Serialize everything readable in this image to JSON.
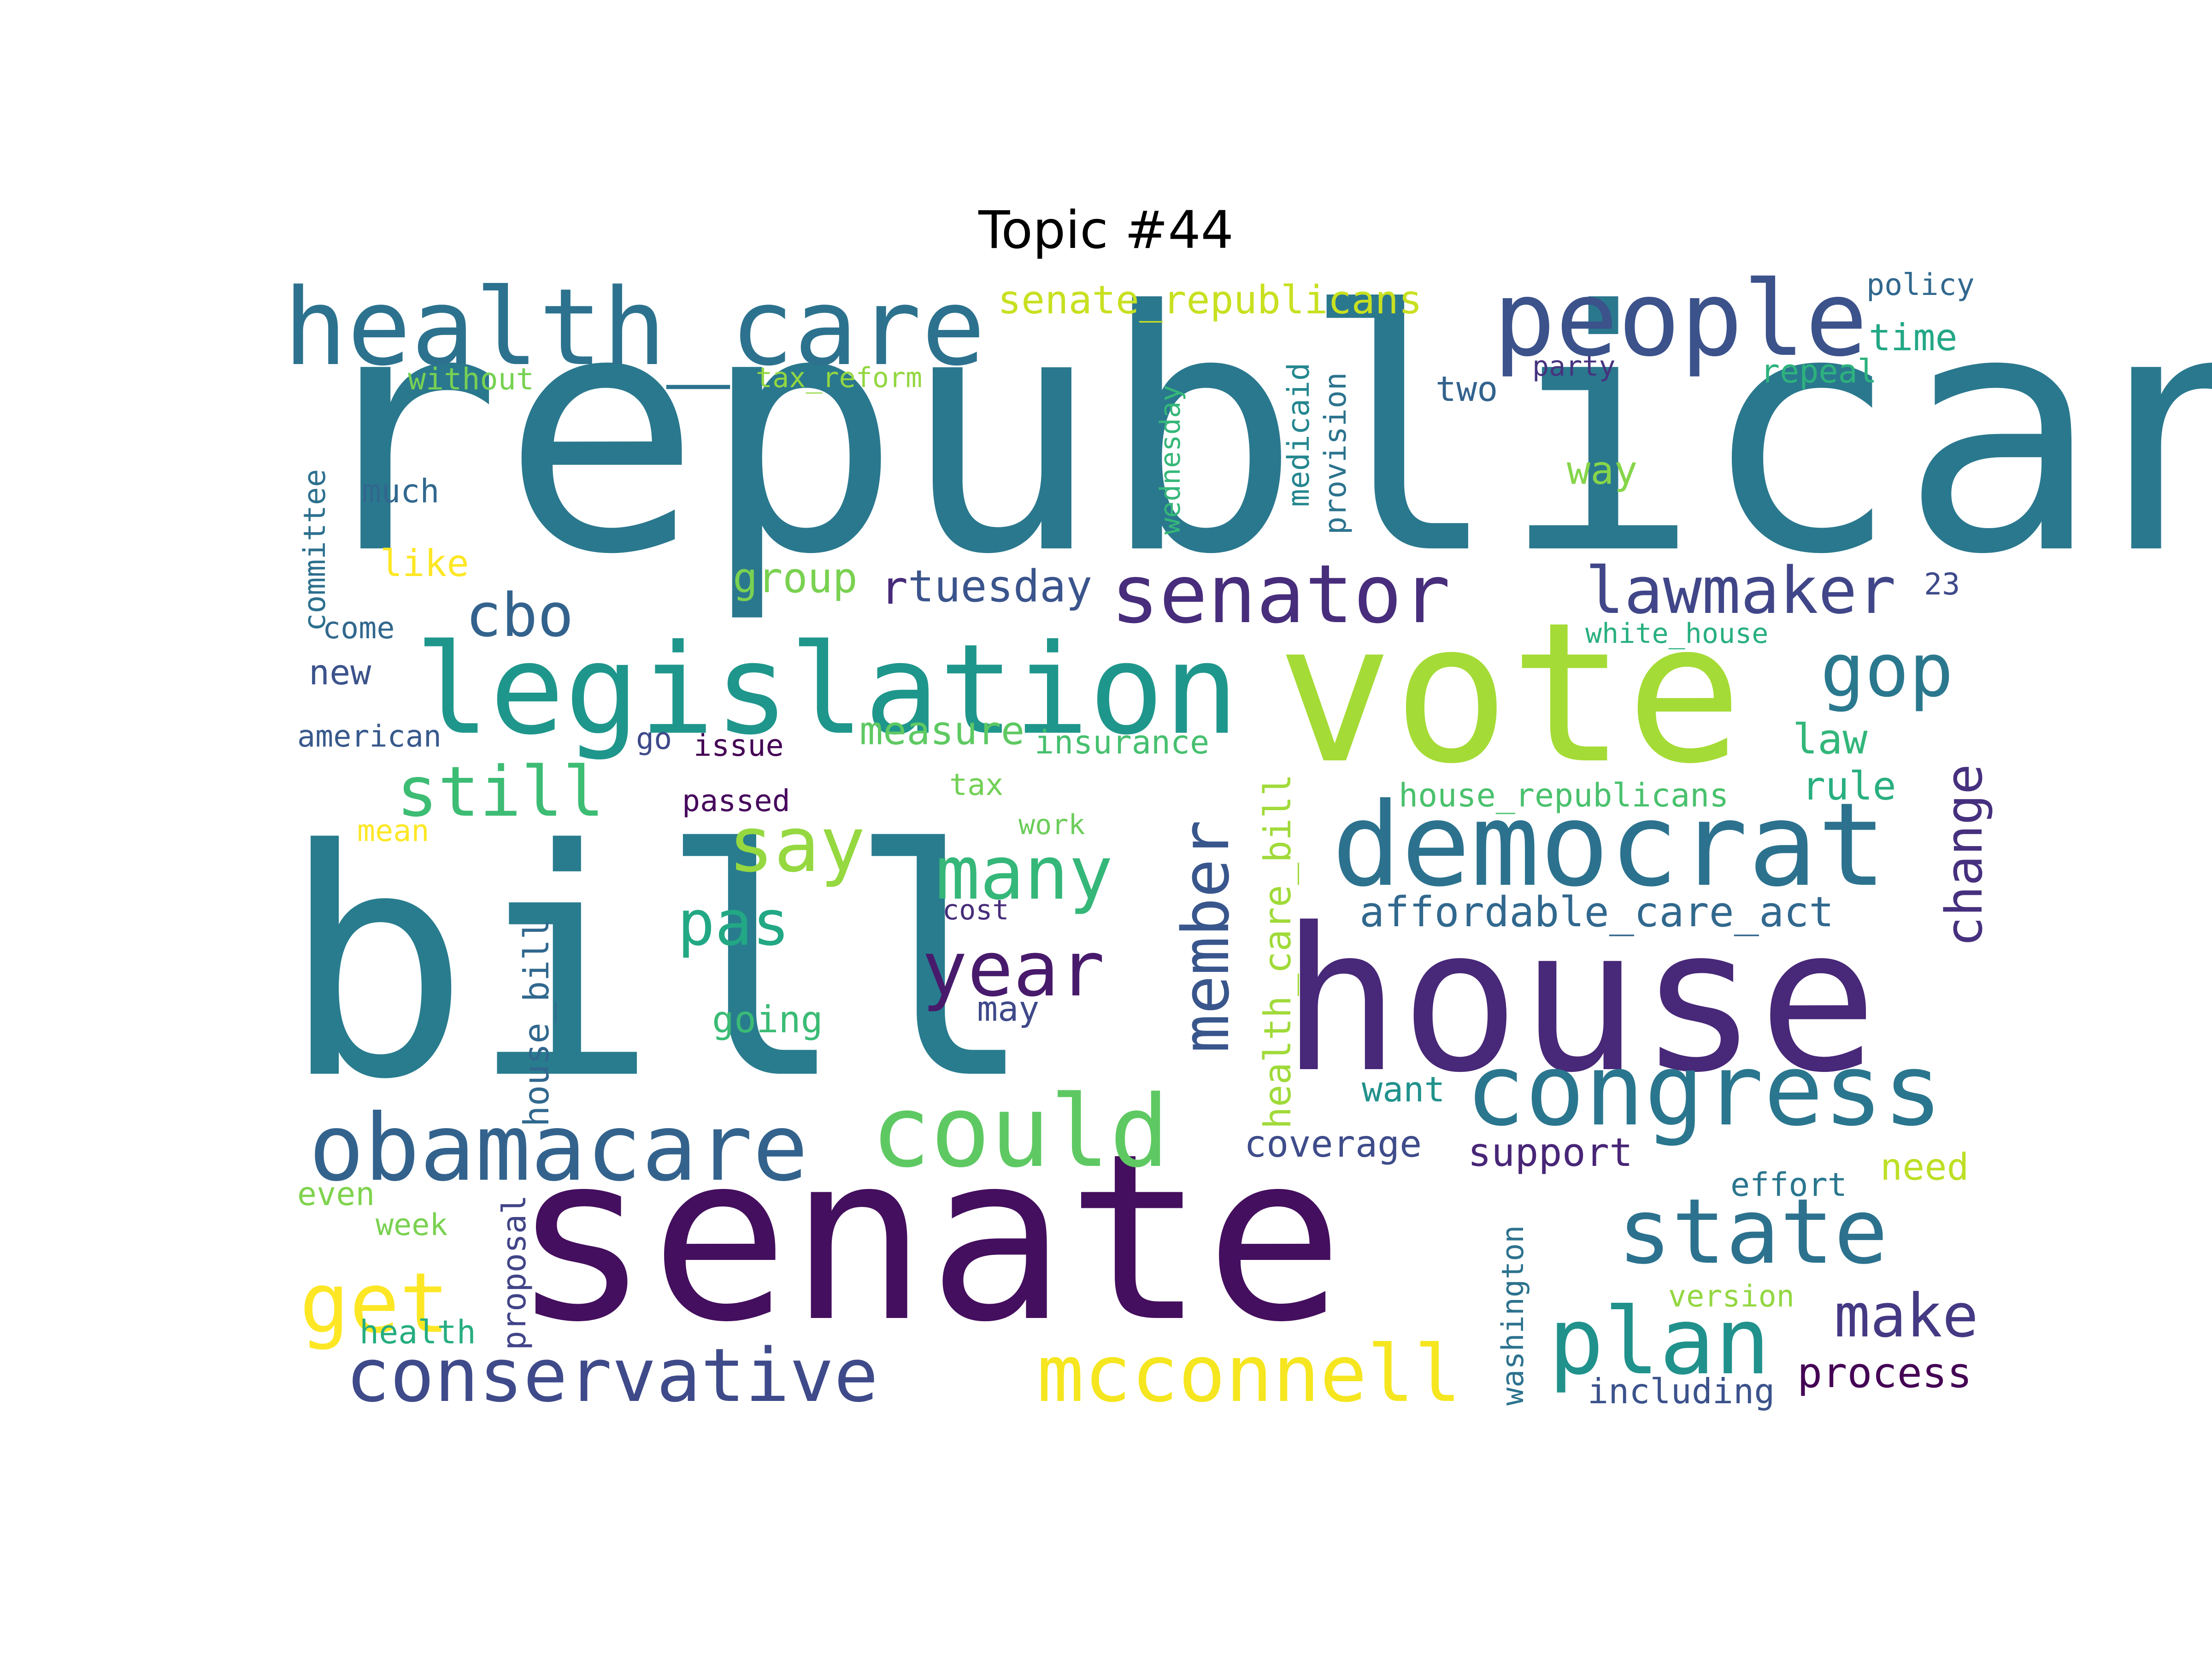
{
  "title": "Topic #44",
  "words": [
    {
      "t": "republican",
      "c": "#2a788e"
    },
    {
      "t": "bill",
      "c": "#287c8e"
    },
    {
      "t": "senate",
      "c": "#440f5e"
    },
    {
      "t": "vote",
      "c": "#a5db36"
    },
    {
      "t": "house",
      "c": "#482878"
    },
    {
      "t": "legislation",
      "c": "#1f968b"
    },
    {
      "t": "health_care",
      "c": "#2c728e"
    },
    {
      "t": "people",
      "c": "#3b528b"
    },
    {
      "t": "democrat",
      "c": "#2c728e"
    },
    {
      "t": "congress",
      "c": "#2a768e"
    },
    {
      "t": "obamacare",
      "c": "#33638d"
    },
    {
      "t": "senator",
      "c": "#472d7b"
    },
    {
      "t": "could",
      "c": "#5ec962"
    },
    {
      "t": "conservative",
      "c": "#3e4a89"
    },
    {
      "t": "mcconnell",
      "c": "#f5e61f"
    },
    {
      "t": "state",
      "c": "#2c728e"
    },
    {
      "t": "plan",
      "c": "#21918c"
    },
    {
      "t": "lawmaker",
      "c": "#404688"
    },
    {
      "t": "gop",
      "c": "#2a788e"
    },
    {
      "t": "still",
      "c": "#3dbc74"
    },
    {
      "t": "get",
      "c": "#fde725"
    },
    {
      "t": "cbo",
      "c": "#33638d"
    },
    {
      "t": "many",
      "c": "#35b779"
    },
    {
      "t": "say",
      "c": "#95d840"
    },
    {
      "t": "pas",
      "c": "#22a884"
    },
    {
      "t": "year",
      "c": "#481a6c"
    },
    {
      "t": "member",
      "c": "#39568c"
    },
    {
      "t": "health_care_bill",
      "c": "#a0da39"
    },
    {
      "t": "affordable_care_act",
      "c": "#31688e"
    },
    {
      "t": "change",
      "c": "#46307e"
    },
    {
      "t": "make",
      "c": "#443983"
    },
    {
      "t": "senate_republicans",
      "c": "#c8e020"
    },
    {
      "t": "tuesday",
      "c": "#3a548c"
    },
    {
      "t": "group",
      "c": "#7ad151"
    },
    {
      "t": "measure",
      "c": "#5ec962"
    },
    {
      "t": "house_bill",
      "c": "#31688e"
    },
    {
      "t": "coverage",
      "c": "#3e4c8a"
    },
    {
      "t": "support",
      "c": "#482677"
    },
    {
      "t": "house_republicans",
      "c": "#4ac16d"
    },
    {
      "t": "insurance",
      "c": "#46c06f"
    },
    {
      "t": "process",
      "c": "#440154"
    },
    {
      "t": "including",
      "c": "#3b528b"
    },
    {
      "t": "washington",
      "c": "#2c728e"
    },
    {
      "t": "proposal",
      "c": "#414487"
    },
    {
      "t": "law",
      "c": "#32b67a"
    },
    {
      "t": "rule",
      "c": "#29af7f"
    },
    {
      "t": "committee",
      "c": "#2d708e"
    },
    {
      "t": "wednesday",
      "c": "#35b779"
    },
    {
      "t": "medicaid",
      "c": "#24868e"
    },
    {
      "t": "provision",
      "c": "#2c738e"
    },
    {
      "t": "way",
      "c": "#86d549"
    },
    {
      "t": "time",
      "c": "#22a785"
    },
    {
      "t": "repeal",
      "c": "#2db27d"
    },
    {
      "t": "two",
      "c": "#33638d"
    },
    {
      "t": "party",
      "c": "#46337f"
    },
    {
      "t": "policy",
      "c": "#31688e"
    },
    {
      "t": "tax_reform",
      "c": "#93d741"
    },
    {
      "t": "without",
      "c": "#77d153"
    },
    {
      "t": "much",
      "c": "#31688e"
    },
    {
      "t": "like",
      "c": "#fde725"
    },
    {
      "t": "new",
      "c": "#3b528b"
    },
    {
      "t": "come",
      "c": "#31688e"
    },
    {
      "t": "american",
      "c": "#38598c"
    },
    {
      "t": "go",
      "c": "#3e4a89"
    },
    {
      "t": "issue",
      "c": "#440154"
    },
    {
      "t": "passed",
      "c": "#46085c"
    },
    {
      "t": "tax",
      "c": "#73d056"
    },
    {
      "t": "mean",
      "c": "#fde725"
    },
    {
      "t": "work",
      "c": "#6ccd5a"
    },
    {
      "t": "cost",
      "c": "#472c7a"
    },
    {
      "t": "may",
      "c": "#3e4989"
    },
    {
      "t": "going",
      "c": "#3bbb75"
    },
    {
      "t": "want",
      "c": "#21918c"
    },
    {
      "t": "white_house",
      "c": "#29af7f"
    },
    {
      "t": "23",
      "c": "#3e4a89"
    },
    {
      "t": "need",
      "c": "#bddf26"
    },
    {
      "t": "effort",
      "c": "#2a768e"
    },
    {
      "t": "version",
      "c": "#93d741"
    },
    {
      "t": "even",
      "c": "#7fd34e"
    },
    {
      "t": "week",
      "c": "#7ad151"
    },
    {
      "t": "health",
      "c": "#26ad81"
    },
    {
      "t": "r",
      "c": "#472a7a"
    }
  ]
}
